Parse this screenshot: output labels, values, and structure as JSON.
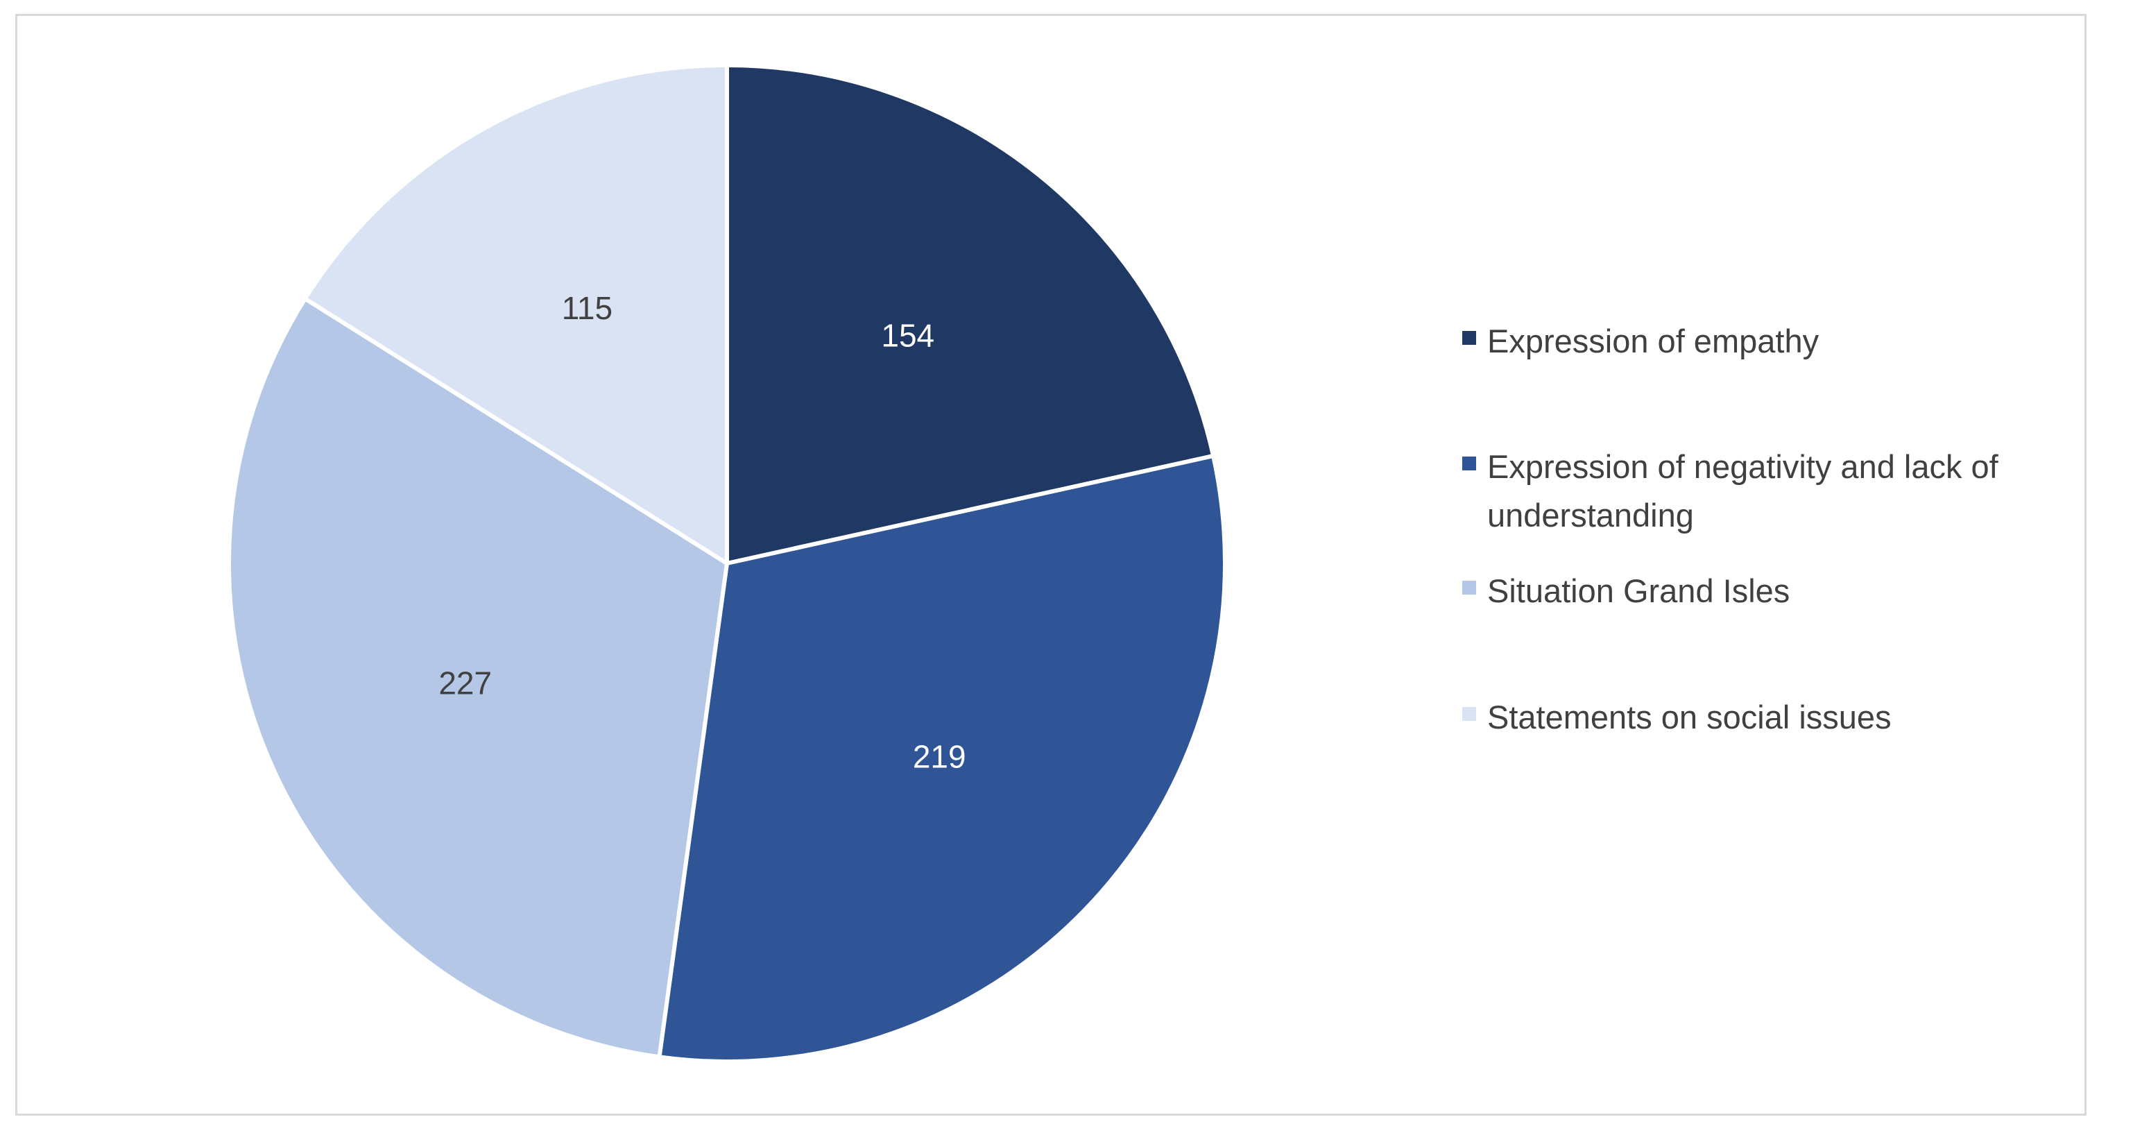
{
  "chart_data": {
    "type": "pie",
    "title": "",
    "series": [
      {
        "name": "Expression of empathy",
        "value": 154,
        "color": "#203864"
      },
      {
        "name": "Expression of negativity and lack of understanding",
        "value": 219,
        "color": "#2f5597"
      },
      {
        "name": "Situation Grand Isles",
        "value": 227,
        "color": "#b4c7e7"
      },
      {
        "name": "Statements on social issues",
        "value": 115,
        "color": "#dae3f3"
      }
    ],
    "label_colors": [
      "#ffffff",
      "#ffffff",
      "#404040",
      "#404040"
    ],
    "start_angle_deg": 0,
    "direction": "clockwise",
    "legend_position": "right"
  }
}
